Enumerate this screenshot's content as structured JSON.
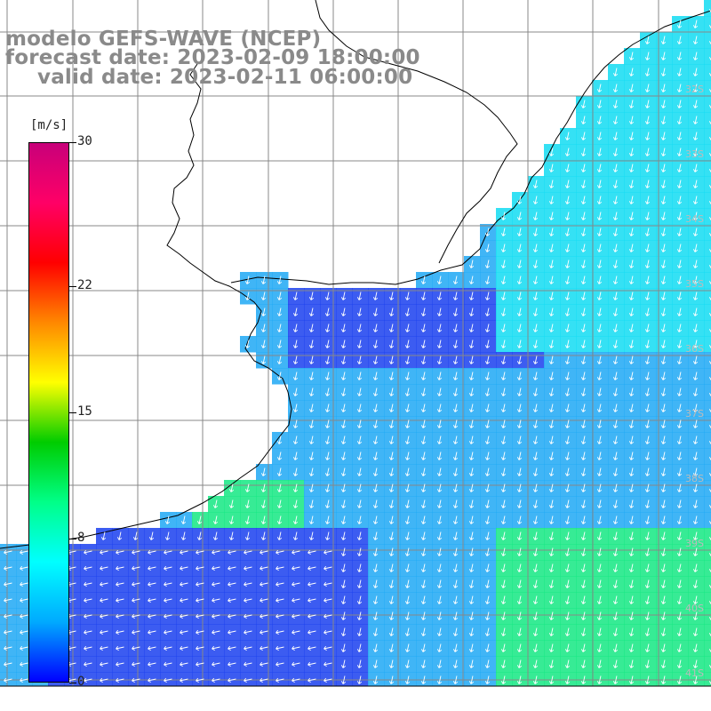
{
  "title": {
    "line1": "modelo GEFS-WAVE (NCEP)",
    "line2": "forecast date: 2023-02-09 18:00:00",
    "line3": "valid date: 2023-02-11 06:00:00"
  },
  "colorbar": {
    "unit_label": "[m/s]",
    "ticks": [
      {
        "label": "30",
        "value": 30
      },
      {
        "label": "22",
        "value": 22
      },
      {
        "label": "15",
        "value": 15
      },
      {
        "label": "8",
        "value": 8
      },
      {
        "label": "0",
        "value": 0
      }
    ],
    "range": [
      0,
      30
    ],
    "colors": [
      "#0000ff",
      "#00aaff",
      "#00ffff",
      "#00ff88",
      "#00cc00",
      "#ffff00",
      "#ff8800",
      "#ff0000",
      "#ff0066",
      "#c8007a"
    ]
  },
  "map": {
    "ocean_field_colors": {
      "low": "#1a40ee",
      "mid": "#1ea8f5",
      "cyan": "#12dcf2",
      "green": "#14e882"
    },
    "land_color": "#ffffff",
    "coastline_color": "#000000",
    "grid_color": "#888888",
    "arrow_color": "#ffffff",
    "lat_labels": [
      "32S",
      "33S",
      "34S",
      "35S",
      "36S",
      "37S",
      "38S",
      "39S",
      "40S",
      "41S"
    ]
  }
}
